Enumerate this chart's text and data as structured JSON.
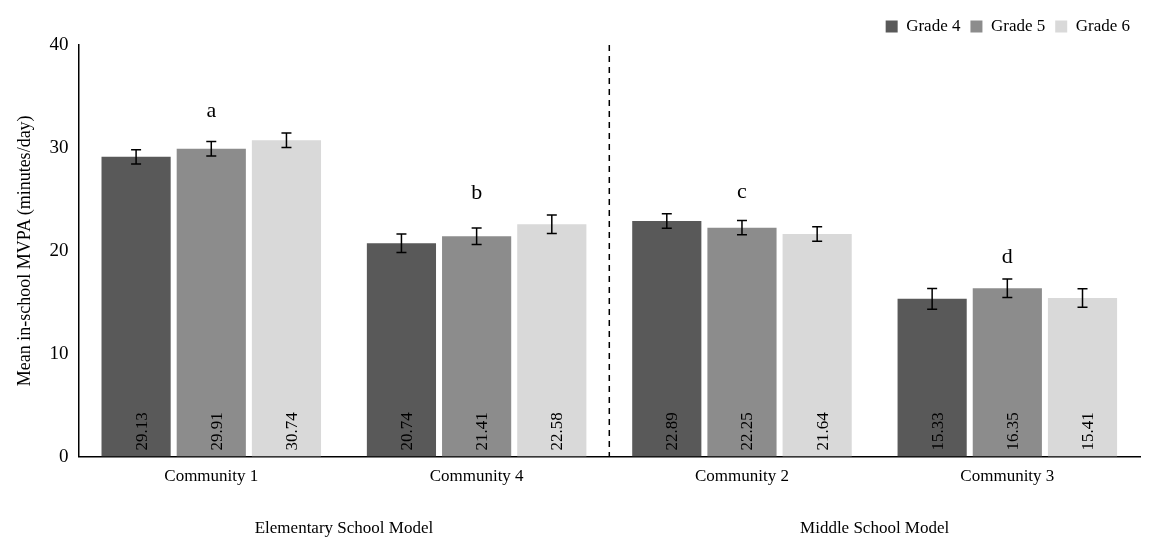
{
  "chart_data": {
    "type": "bar",
    "ylabel": "Mean in-school MVPA (minutes/day)",
    "categories": [
      "Community 1",
      "Community 4",
      "Community 2",
      "Community 3"
    ],
    "series": [
      {
        "name": "Grade 4",
        "color": "#595959",
        "values": [
          29.13,
          20.74,
          22.89,
          15.33
        ],
        "errors": [
          0.7,
          0.9,
          0.7,
          1.0
        ]
      },
      {
        "name": "Grade 5",
        "color": "#8c8c8c",
        "values": [
          29.91,
          21.41,
          22.25,
          16.35
        ],
        "errors": [
          0.7,
          0.8,
          0.7,
          0.9
        ]
      },
      {
        "name": "Grade 6",
        "color": "#d9d9d9",
        "values": [
          30.74,
          22.58,
          21.64,
          15.41
        ],
        "errors": [
          0.7,
          0.9,
          0.7,
          0.9
        ]
      }
    ],
    "ylim": [
      0,
      40
    ],
    "yticks": [
      0,
      10,
      20,
      30,
      40
    ],
    "grid": false,
    "legend": "top right",
    "data_labels": true,
    "annotations": [
      "a",
      "b",
      "c",
      "d",
      "Elementary School Model",
      "Middle School Model"
    ]
  }
}
